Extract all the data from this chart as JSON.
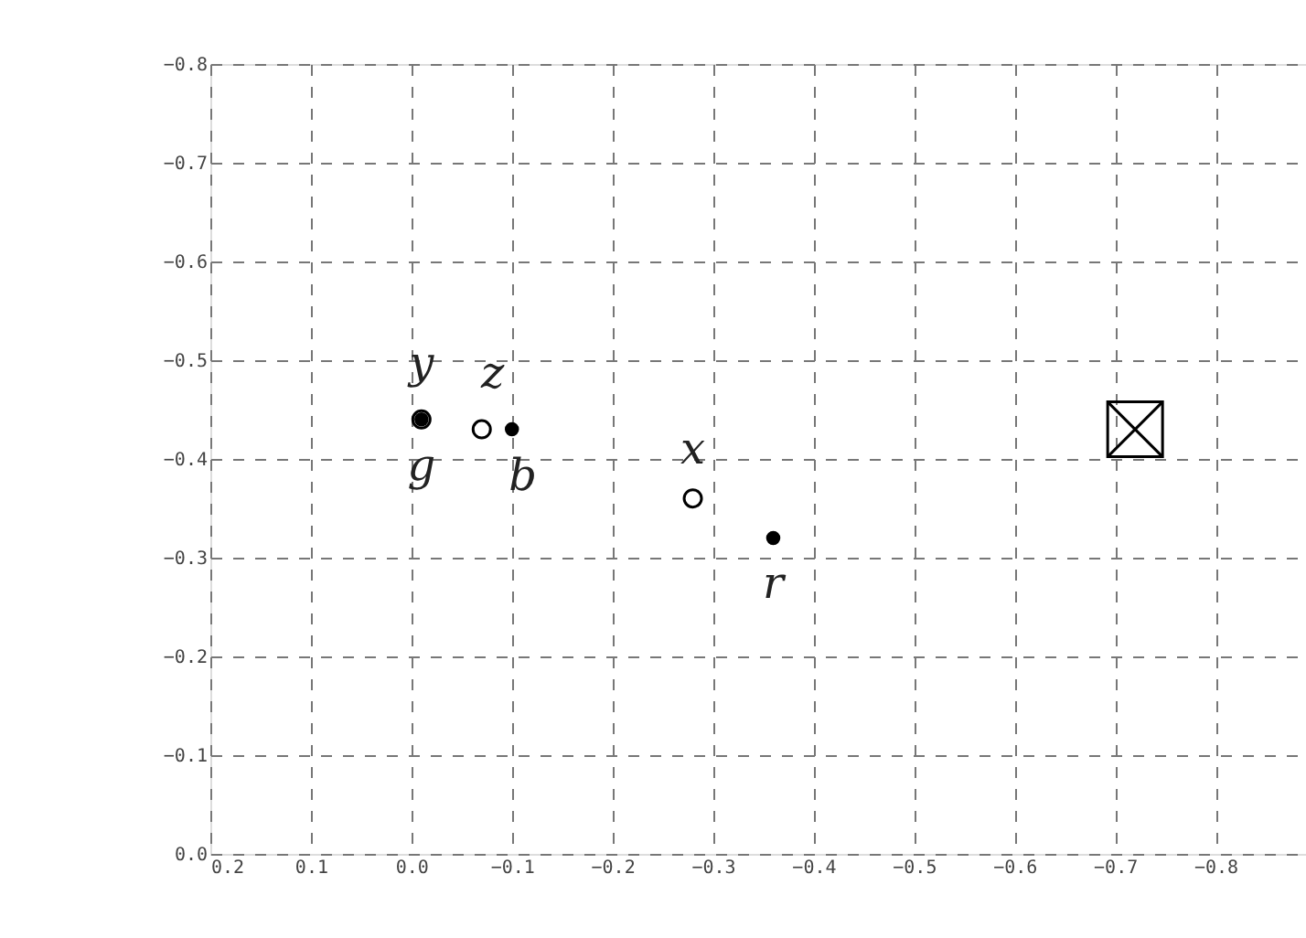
{
  "chart_data": {
    "type": "scatter",
    "xlim": [
      0.2,
      -0.89
    ],
    "ylim": [
      0,
      -0.8
    ],
    "xticks": [
      0.2,
      0.1,
      {
        "value": 0,
        "label": "0.0"
      },
      -0.1,
      -0.2,
      -0.3,
      -0.4,
      -0.5,
      -0.6,
      -0.7,
      -0.8
    ],
    "yticks": [
      {
        "value": 0,
        "label": "0.0"
      },
      -0.1,
      -0.2,
      -0.3,
      -0.4,
      -0.5,
      -0.6,
      -0.7,
      -0.8
    ],
    "grid": true,
    "series": [
      {
        "color": "#000000",
        "marker": "circle",
        "x": [
          -0.01,
          -0.07,
          -0.28
        ],
        "values": [
          -0.44,
          -0.43,
          -0.36
        ]
      },
      {
        "color": "#000000",
        "marker": "circle",
        "x": [
          -0.01,
          -0.1,
          -0.36
        ],
        "values": [
          -0.44,
          -0.43,
          -0.32
        ]
      },
      {
        "color": "#000000",
        "marker": "square",
        "x": [
          -0.72
        ],
        "values": [
          -0.43
        ]
      }
    ],
    "annotations": [
      {
        "text": "y",
        "x": -0.01,
        "y": -0.44
      },
      {
        "text": "g",
        "x": -0.01,
        "y": -0.44
      },
      {
        "text": "z",
        "x": -0.07,
        "y": -0.43
      },
      {
        "text": "b",
        "x": -0.1,
        "y": -0.43
      },
      {
        "text": "x",
        "x": -0.28,
        "y": -0.36
      },
      {
        "text": "r",
        "x": -0.36,
        "y": -0.32
      }
    ]
  }
}
